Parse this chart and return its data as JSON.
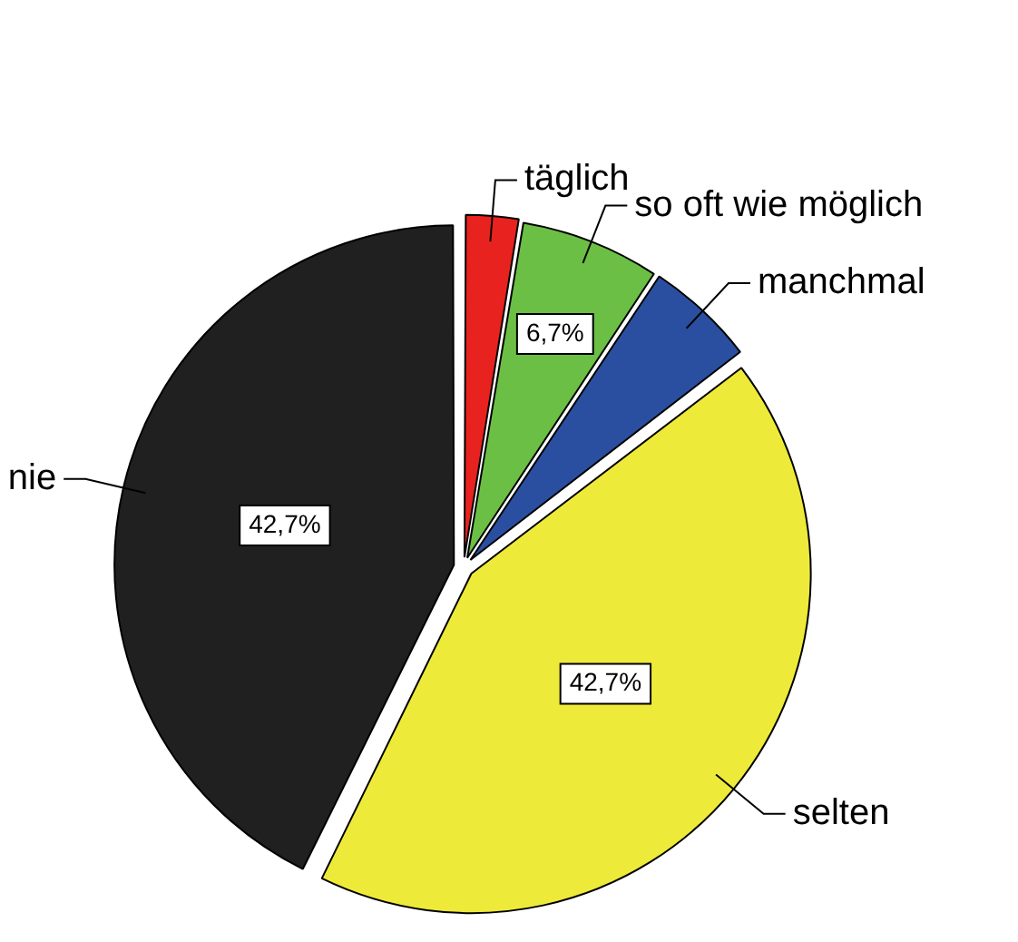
{
  "chart_data": {
    "type": "pie",
    "categories": [
      "täglich",
      "so oft wie möglich",
      "manchmal",
      "selten",
      "nie"
    ],
    "values": [
      2.6,
      6.7,
      5.3,
      42.7,
      42.7
    ],
    "colors": [
      "#e8221e",
      "#6cbf45",
      "#2b4fa0",
      "#eeea3a",
      "#202020"
    ],
    "value_labels": [
      null,
      "6,7%",
      null,
      "42,7%",
      "42,7%"
    ],
    "legend": false
  }
}
